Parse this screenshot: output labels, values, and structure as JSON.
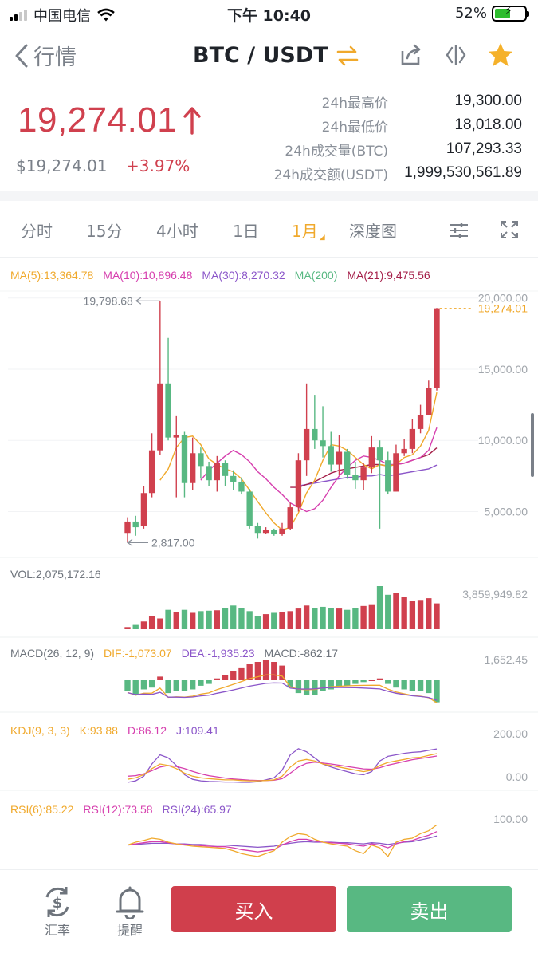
{
  "status": {
    "carrier": "中国电信",
    "time": "下午 10:40",
    "battery_pct": "52%",
    "battery_level": 0.52
  },
  "nav": {
    "back_label": "行情",
    "pair": "BTC / USDT"
  },
  "price": {
    "last": "19,274.01",
    "usd": "$19,274.01",
    "change": "+3.97%"
  },
  "stats": [
    {
      "label": "24h最高价",
      "value": "19,300.00"
    },
    {
      "label": "24h最低价",
      "value": "18,018.00"
    },
    {
      "label": "24h成交量(BTC)",
      "value": "107,293.33"
    },
    {
      "label": "24h成交额(USDT)",
      "value": "1,999,530,561.89"
    }
  ],
  "tabs": [
    "分时",
    "15分",
    "4小时",
    "1日",
    "1月",
    "深度图"
  ],
  "active_tab": "1月",
  "colors": {
    "up": "#d0404e",
    "down": "#58b882",
    "accent": "#f0a92c",
    "ma5": "#f0a92c",
    "ma10": "#d63fae",
    "ma30": "#8b56c9",
    "ma200": "#58b882",
    "ma21": "#a5204a"
  },
  "indicators": {
    "ma": [
      {
        "label": "MA(5):13,364.78",
        "color": "#f0a92c"
      },
      {
        "label": "MA(10):10,896.48",
        "color": "#d63fae"
      },
      {
        "label": "MA(30):8,270.32",
        "color": "#8b56c9"
      },
      {
        "label": "MA(200)",
        "color": "#58b882"
      },
      {
        "label": "MA(21):9,475.56",
        "color": "#a5204a"
      }
    ],
    "price_axis": [
      "20,000.00",
      "15,000.00",
      "10,000.00",
      "5,000.00"
    ],
    "last_marker": "19,274.01",
    "high_marker": "19,798.68",
    "low_marker": "2,817.00",
    "vol_label": "VOL:2,075,172.16",
    "vol_axis": "3,859,949.82",
    "macd": [
      {
        "label": "MACD(26, 12, 9)",
        "color": "#6e747c"
      },
      {
        "label": "DIF:-1,073.07",
        "color": "#f0a92c"
      },
      {
        "label": "DEA:-1,935.23",
        "color": "#8b56c9"
      },
      {
        "label": "MACD:-862.17",
        "color": "#6e747c"
      }
    ],
    "macd_axis": "1,652.45",
    "kdj": [
      {
        "label": "KDJ(9, 3, 3)",
        "color": "#f0a92c"
      },
      {
        "label": "K:93.88",
        "color": "#f0a92c"
      },
      {
        "label": "D:86.12",
        "color": "#d63fae"
      },
      {
        "label": "J:109.41",
        "color": "#8b56c9"
      }
    ],
    "kdj_axis": [
      "200.00",
      "0.00"
    ],
    "rsi": [
      {
        "label": "RSI(6):85.22",
        "color": "#f0a92c"
      },
      {
        "label": "RSI(12):73.58",
        "color": "#d63fae"
      },
      {
        "label": "RSI(24):65.97",
        "color": "#8b56c9"
      }
    ],
    "rsi_axis": "100.00"
  },
  "chart_data": {
    "type": "candlestick",
    "price_range": [
      2000,
      20600
    ],
    "candles": [
      {
        "o": 3500,
        "c": 4300,
        "h": 4600,
        "l": 2817
      },
      {
        "o": 4300,
        "c": 3900,
        "h": 4700,
        "l": 3300
      },
      {
        "o": 4000,
        "c": 6300,
        "h": 6800,
        "l": 3800
      },
      {
        "o": 6300,
        "c": 9300,
        "h": 10500,
        "l": 6000
      },
      {
        "o": 9300,
        "c": 14000,
        "h": 19798.68,
        "l": 9000
      },
      {
        "o": 14000,
        "c": 10200,
        "h": 17200,
        "l": 10000
      },
      {
        "o": 10200,
        "c": 10400,
        "h": 11700,
        "l": 6000
      },
      {
        "o": 10400,
        "c": 7000,
        "h": 10600,
        "l": 6000
      },
      {
        "o": 7000,
        "c": 9100,
        "h": 10200,
        "l": 6500
      },
      {
        "o": 9100,
        "c": 8200,
        "h": 9500,
        "l": 7300
      },
      {
        "o": 8200,
        "c": 7200,
        "h": 8500,
        "l": 6800
      },
      {
        "o": 7200,
        "c": 8400,
        "h": 8900,
        "l": 6400
      },
      {
        "o": 8400,
        "c": 7500,
        "h": 8600,
        "l": 6800
      },
      {
        "o": 7500,
        "c": 7100,
        "h": 7900,
        "l": 6500
      },
      {
        "o": 7100,
        "c": 6400,
        "h": 7400,
        "l": 6200
      },
      {
        "o": 6400,
        "c": 4000,
        "h": 6600,
        "l": 3800
      },
      {
        "o": 4000,
        "c": 3500,
        "h": 4200,
        "l": 3100
      },
      {
        "o": 3500,
        "c": 3700,
        "h": 3900,
        "l": 3400
      },
      {
        "o": 3700,
        "c": 3400,
        "h": 3800,
        "l": 3300
      },
      {
        "o": 3400,
        "c": 3800,
        "h": 4200,
        "l": 3300
      },
      {
        "o": 3800,
        "c": 5300,
        "h": 5600,
        "l": 3700
      },
      {
        "o": 5300,
        "c": 8600,
        "h": 9100,
        "l": 5000
      },
      {
        "o": 8600,
        "c": 10800,
        "h": 14000,
        "l": 7500
      },
      {
        "o": 10800,
        "c": 10000,
        "h": 13200,
        "l": 9400
      },
      {
        "o": 10000,
        "c": 9600,
        "h": 12400,
        "l": 8800
      },
      {
        "o": 9600,
        "c": 8300,
        "h": 10600,
        "l": 7800
      },
      {
        "o": 8300,
        "c": 9200,
        "h": 10400,
        "l": 7600
      },
      {
        "o": 9200,
        "c": 7600,
        "h": 9400,
        "l": 7300
      },
      {
        "o": 7600,
        "c": 7200,
        "h": 8500,
        "l": 6600
      },
      {
        "o": 7200,
        "c": 8100,
        "h": 8400,
        "l": 6500
      },
      {
        "o": 8100,
        "c": 9500,
        "h": 10300,
        "l": 7700
      },
      {
        "o": 9500,
        "c": 8600,
        "h": 10000,
        "l": 3800
      },
      {
        "o": 8600,
        "c": 6400,
        "h": 9200,
        "l": 6200
      },
      {
        "o": 6400,
        "c": 9100,
        "h": 9700,
        "l": 6400
      },
      {
        "o": 9100,
        "c": 9400,
        "h": 10100,
        "l": 8900
      },
      {
        "o": 9400,
        "c": 10800,
        "h": 11500,
        "l": 9100
      },
      {
        "o": 10800,
        "c": 11800,
        "h": 12500,
        "l": 10500
      },
      {
        "o": 11800,
        "c": 13700,
        "h": 14200,
        "l": 11800
      },
      {
        "o": 13700,
        "c": 19274.01,
        "h": 19300,
        "l": 13500
      }
    ],
    "ma5": [
      null,
      null,
      null,
      null,
      7200,
      8000,
      9500,
      10200,
      10300,
      9700,
      8700,
      8300,
      8000,
      7800,
      7300,
      6500,
      5700,
      4900,
      4200,
      3700,
      3900,
      4900,
      6300,
      7200,
      8600,
      9700,
      9600,
      9300,
      8800,
      8300,
      8000,
      8300,
      8200,
      8300,
      8800,
      9000,
      9600,
      10700,
      13364.78
    ],
    "ma10": [
      null,
      null,
      null,
      null,
      null,
      null,
      null,
      null,
      null,
      7200,
      7900,
      8400,
      8900,
      9300,
      9000,
      8500,
      7800,
      7300,
      6700,
      6200,
      5600,
      5300,
      5000,
      5200,
      5800,
      6700,
      7500,
      8100,
      8600,
      8900,
      8800,
      8600,
      8300,
      8300,
      8400,
      8600,
      8800,
      9300,
      10896.48
    ],
    "ma30": [
      null,
      null,
      null,
      null,
      null,
      null,
      null,
      null,
      null,
      null,
      null,
      null,
      null,
      null,
      null,
      null,
      null,
      null,
      null,
      null,
      null,
      6800,
      6900,
      7000,
      7100,
      7200,
      7300,
      7400,
      7400,
      7500,
      7500,
      7600,
      7500,
      7600,
      7700,
      7800,
      7900,
      8000,
      8270.32
    ],
    "ma21": [
      null,
      null,
      null,
      null,
      null,
      null,
      null,
      null,
      null,
      null,
      null,
      null,
      null,
      null,
      null,
      null,
      null,
      null,
      null,
      null,
      6700,
      6700,
      6900,
      7100,
      7400,
      7700,
      7900,
      8000,
      8100,
      8200,
      8300,
      8300,
      8200,
      8300,
      8400,
      8600,
      8800,
      9000,
      9475.56
    ],
    "vol": [
      5,
      10,
      18,
      30,
      25,
      45,
      40,
      45,
      38,
      42,
      43,
      44,
      50,
      55,
      50,
      42,
      30,
      35,
      38,
      40,
      42,
      48,
      55,
      50,
      52,
      50,
      48,
      45,
      50,
      54,
      58,
      100,
      80,
      85,
      75,
      65,
      68,
      72,
      60
    ],
    "vol_axis_max": 3859949.82,
    "macd_hist": [
      -6,
      -8,
      -5,
      -4,
      2,
      -7,
      -6,
      -6,
      -5,
      -3,
      -2,
      1,
      3,
      5,
      7,
      9,
      10,
      11,
      10,
      8,
      -4,
      -7,
      -8,
      -8,
      -6,
      -5,
      -4,
      -3,
      -2,
      -1,
      0,
      1,
      -2,
      -4,
      -5,
      -6,
      -6,
      -7,
      -12
    ],
    "kdj_k": [
      10,
      15,
      25,
      45,
      60,
      55,
      45,
      30,
      20,
      15,
      12,
      10,
      8,
      8,
      6,
      5,
      5,
      6,
      8,
      20,
      50,
      70,
      75,
      70,
      60,
      55,
      50,
      45,
      40,
      35,
      40,
      55,
      65,
      70,
      75,
      80,
      82,
      88,
      93.88
    ],
    "kdj_d": [
      20,
      22,
      28,
      38,
      50,
      55,
      52,
      45,
      36,
      28,
      22,
      18,
      14,
      11,
      9,
      7,
      6,
      6,
      7,
      12,
      30,
      50,
      62,
      66,
      63,
      60,
      56,
      52,
      48,
      44,
      43,
      48,
      56,
      62,
      68,
      74,
      78,
      82,
      86.12
    ],
    "kdj_j": [
      0,
      5,
      20,
      60,
      90,
      80,
      55,
      25,
      10,
      5,
      3,
      2,
      1,
      1,
      0,
      0,
      2,
      8,
      15,
      40,
      90,
      110,
      100,
      80,
      60,
      50,
      42,
      35,
      28,
      25,
      35,
      70,
      85,
      90,
      95,
      98,
      100,
      105,
      109.41
    ],
    "rsi6": [
      50,
      55,
      58,
      62,
      60,
      55,
      52,
      50,
      48,
      47,
      46,
      45,
      44,
      40,
      35,
      32,
      30,
      35,
      40,
      55,
      65,
      70,
      68,
      60,
      55,
      52,
      50,
      48,
      40,
      35,
      50,
      45,
      30,
      55,
      60,
      62,
      70,
      75,
      85.22
    ],
    "rsi12": [
      50,
      52,
      54,
      56,
      56,
      54,
      52,
      51,
      50,
      49,
      48,
      47,
      47,
      45,
      42,
      40,
      38,
      40,
      42,
      50,
      56,
      60,
      60,
      57,
      55,
      54,
      53,
      52,
      50,
      48,
      52,
      50,
      45,
      52,
      56,
      58,
      63,
      67,
      73.58
    ],
    "rsi24": [
      50,
      51,
      52,
      53,
      53,
      53,
      52,
      52,
      51,
      51,
      50,
      50,
      50,
      49,
      48,
      47,
      46,
      47,
      48,
      51,
      53,
      55,
      56,
      55,
      55,
      55,
      54,
      54,
      53,
      52,
      54,
      53,
      51,
      53,
      55,
      56,
      59,
      62,
      65.97
    ]
  },
  "bottom": {
    "rate_label": "汇率",
    "alert_label": "提醒",
    "buy_label": "买入",
    "sell_label": "卖出"
  }
}
